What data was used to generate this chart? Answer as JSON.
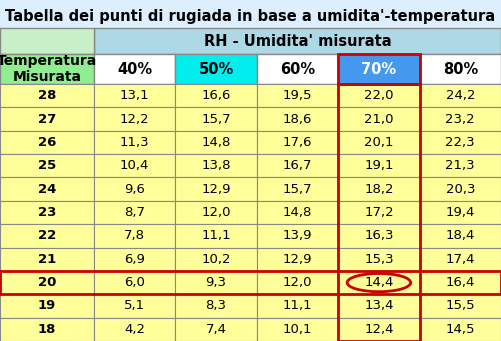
{
  "title": "Tabella dei punti di rugiada in base a umidita'-temperatura",
  "header_rh": "RH - Umidita' misurata",
  "col_header": "Temperatura\nMisurata",
  "rh_labels": [
    "40%",
    "50%",
    "60%",
    "70%",
    "80%"
  ],
  "temperatures": [
    28,
    27,
    26,
    25,
    24,
    23,
    22,
    21,
    20,
    19,
    18
  ],
  "table_data": [
    [
      "13,1",
      "16,6",
      "19,5",
      "22,0",
      "24,2"
    ],
    [
      "12,2",
      "15,7",
      "18,6",
      "21,0",
      "23,2"
    ],
    [
      "11,3",
      "14,8",
      "17,6",
      "20,1",
      "22,3"
    ],
    [
      "10,4",
      "13,8",
      "16,7",
      "19,1",
      "21,3"
    ],
    [
      "9,6",
      "12,9",
      "15,7",
      "18,2",
      "20,3"
    ],
    [
      "8,7",
      "12,0",
      "14,8",
      "17,2",
      "19,4"
    ],
    [
      "7,8",
      "11,1",
      "13,9",
      "16,3",
      "18,4"
    ],
    [
      "6,9",
      "10,2",
      "12,9",
      "15,3",
      "17,4"
    ],
    [
      "6,0",
      "9,3",
      "12,0",
      "14,4",
      "16,4"
    ],
    [
      "5,1",
      "8,3",
      "11,1",
      "13,4",
      "15,5"
    ],
    [
      "4,2",
      "7,4",
      "10,1",
      "12,4",
      "14,5"
    ]
  ],
  "bg_color": "#ddeeff",
  "color_header_rh": "#add8e6",
  "color_corner": "#c8f0c8",
  "color_temp_header": "#90ee90",
  "rh_col_colors": [
    "#ffffff",
    "#00eeee",
    "#ffffff",
    "#4499ee",
    "#ffffff"
  ],
  "rh_text_colors": [
    "black",
    "black",
    "black",
    "white",
    "black"
  ],
  "color_temp_col": "#ffff99",
  "color_data_rows": "#ffff99",
  "color_red": "#cc0000",
  "title_fontsize": 10.5,
  "header_fontsize": 10.5,
  "label_fontsize": 10,
  "cell_fontsize": 9.5,
  "highlight_row": 8,
  "highlight_col": 3
}
